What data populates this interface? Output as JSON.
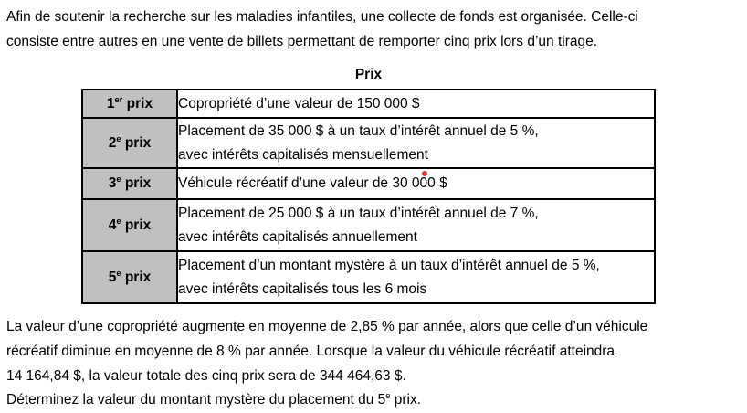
{
  "intro": {
    "lines": [
      "Afin de soutenir la recherche sur les maladies infantiles, une collecte de fonds est organisée. Celle-ci",
      "consiste entre autres en une vente de billets permettant de remporter cinq prix lors d’un tirage."
    ]
  },
  "table": {
    "title": "Prix",
    "rows": [
      {
        "label": {
          "num": "1",
          "sup": "er",
          "rest": " prix"
        },
        "lines": [
          "Copropriété d’une valeur de 150 000 $"
        ]
      },
      {
        "label": {
          "num": "2",
          "sup": "e",
          "rest": " prix"
        },
        "lines": [
          "Placement de 35 000 $ à un taux d’intérêt annuel de 5 %,",
          "avec intérêts capitalisés mensuellement"
        ]
      },
      {
        "label": {
          "num": "3",
          "sup": "e",
          "rest": " prix"
        },
        "lines": [
          "Véhicule récréatif d’une valeur de 30 000 $"
        ]
      },
      {
        "label": {
          "num": "4",
          "sup": "e",
          "rest": " prix"
        },
        "lines": [
          "Placement de 25 000 $ à un taux d’intérêt annuel de 7 %,",
          "avec intérêts capitalisés annuellement"
        ]
      },
      {
        "label": {
          "num": "5",
          "sup": "e",
          "rest": " prix"
        },
        "lines": [
          "Placement d’un montant mystère à un taux d’intérêt annuel de 5 %,",
          "avec intérêts capitalisés tous les 6 mois"
        ]
      }
    ]
  },
  "body": {
    "lines": [
      "La valeur d’une copropriété augmente en moyenne de 2,85 % par année, alors que celle d’un véhicule",
      "récréatif diminue en moyenne de 8 % par année. Lorsque la valeur du véhicule récréatif atteindra",
      "14 164,84 $, la valeur totale des cinq prix sera de 344 464,63 $."
    ]
  },
  "question": {
    "before": "Déterminez la valeur du montant mystère du placement du 5",
    "sup": "e",
    "after": " prix."
  },
  "colors": {
    "header_cell_bg": "#c0c0c0",
    "border": "#000000",
    "red_dot": "#e8302e",
    "text": "#000000"
  }
}
